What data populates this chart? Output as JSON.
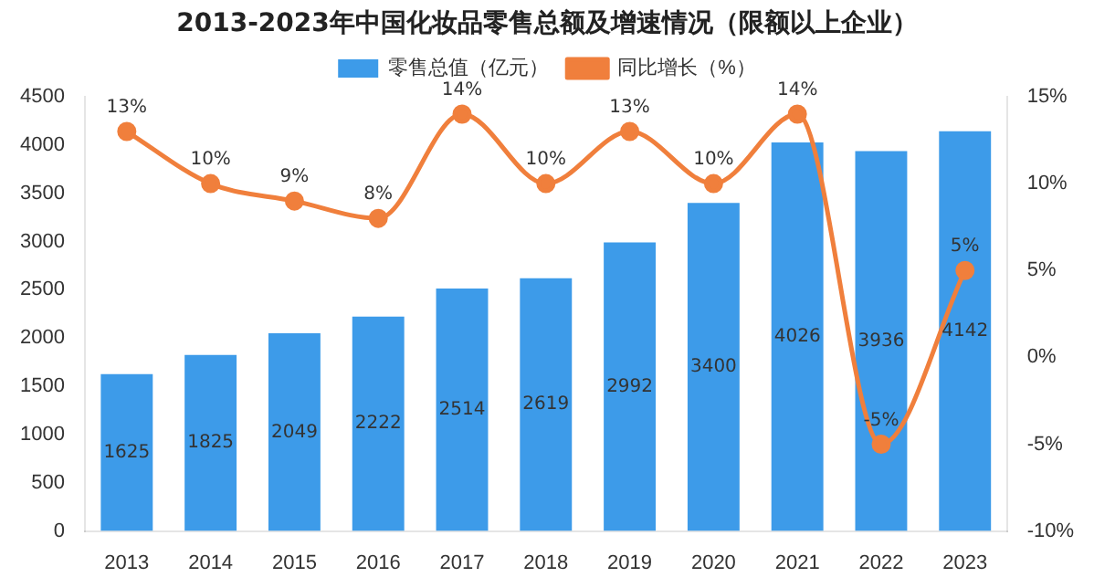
{
  "chart_data": {
    "type": "bar",
    "title": "2013-2023年中国化妆品零售总额及增速情况（限额以上企业）",
    "categories": [
      "2013",
      "2014",
      "2015",
      "2016",
      "2017",
      "2018",
      "2019",
      "2020",
      "2021",
      "2022",
      "2023"
    ],
    "series": [
      {
        "name": "零售总值（亿元）",
        "color": "#3d9be9",
        "values": [
          1625,
          1825,
          2049,
          2222,
          2514,
          2619,
          2992,
          3400,
          4026,
          3936,
          4142
        ],
        "value_labels": [
          "1625",
          "1825",
          "2049",
          "2222",
          "2514",
          "2619",
          "2992",
          "3400",
          "4026",
          "3936",
          "4142"
        ]
      },
      {
        "name": "同比增长（%）",
        "type": "line",
        "axis": "y2",
        "color": "#f07f3c",
        "values": [
          13,
          10,
          9,
          8,
          14,
          10,
          13,
          10,
          14,
          -5,
          5
        ],
        "value_labels": [
          "13%",
          "10%",
          "9%",
          "8%",
          "14%",
          "10%",
          "13%",
          "10%",
          "14%",
          "-5%",
          "5%"
        ]
      }
    ],
    "ylim": [
      0,
      4500
    ],
    "yticks": [
      0,
      500,
      1000,
      1500,
      2000,
      2500,
      3000,
      3500,
      4000,
      4500
    ],
    "y2lim": [
      -10,
      15
    ],
    "y2ticks": [
      {
        "value": -10,
        "label": "-10%"
      },
      {
        "value": -5,
        "label": "-5%"
      },
      {
        "value": 0,
        "label": "0%"
      },
      {
        "value": 5,
        "label": "5%"
      },
      {
        "value": 10,
        "label": "10%"
      },
      {
        "value": 15,
        "label": "15%"
      }
    ],
    "legend": "top",
    "grid": false,
    "marker": "circle",
    "line_style": "solid"
  }
}
